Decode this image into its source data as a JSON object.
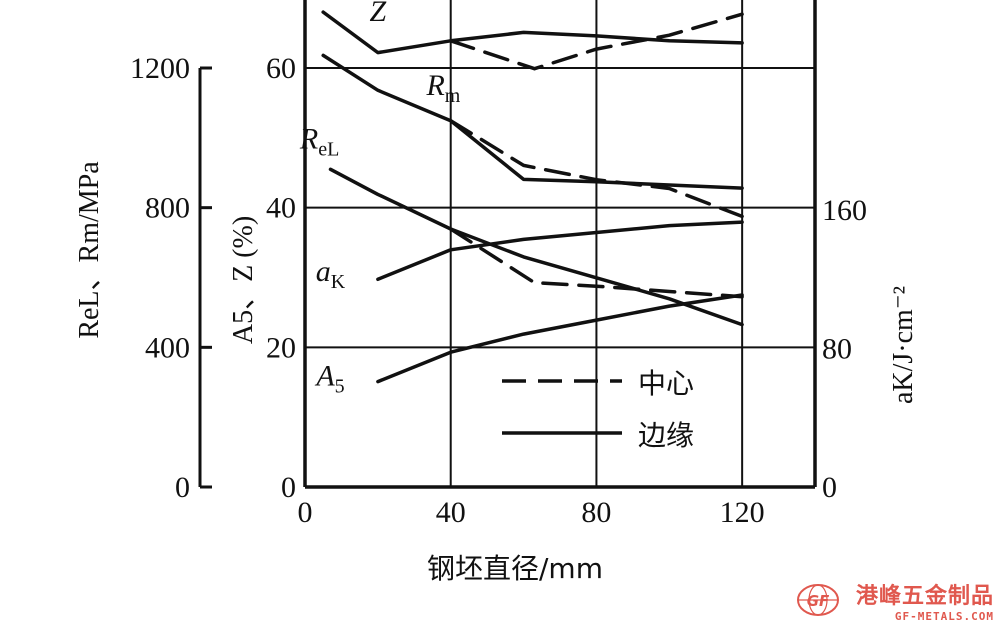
{
  "chart_data": {
    "type": "line",
    "xlabel": "钢坯直径/mm",
    "x_ticks": [
      "0",
      "40",
      "80",
      "120"
    ],
    "xlim": [
      0,
      140
    ],
    "axes": {
      "strength": {
        "label": "ReL、Rm/MPa",
        "ticks": [
          "0",
          "400",
          "800",
          "1200"
        ],
        "range": [
          0,
          1200
        ]
      },
      "percent": {
        "label": "A5、Z (%)",
        "ticks": [
          "0",
          "20",
          "40",
          "60"
        ],
        "range": [
          0,
          60
        ]
      },
      "impact": {
        "label": "aK/J·cm⁻²",
        "ticks": [
          "0",
          "80",
          "160"
        ],
        "range": [
          0,
          200
        ]
      }
    },
    "legend": {
      "placement": "bottom-right",
      "center": "中心",
      "edge": "边缘"
    },
    "series": [
      {
        "label": "Z",
        "axis": "percent",
        "style": "solid",
        "x": [
          5,
          20,
          40,
          60,
          80,
          100,
          120
        ],
        "y": [
          68,
          62.2,
          63.9,
          65.1,
          64.6,
          63.9,
          63.6
        ]
      },
      {
        "label": "Z",
        "axis": "percent",
        "style": "dashed",
        "x": [
          40,
          63,
          80,
          100,
          120
        ],
        "y": [
          63.9,
          59.9,
          62.7,
          64.7,
          67.7
        ]
      },
      {
        "label": "Rm",
        "axis": "strength",
        "style": "solid",
        "x": [
          5,
          20,
          40,
          60,
          80,
          100,
          120
        ],
        "y": [
          1236,
          1136,
          1049,
          881,
          874,
          865,
          856
        ]
      },
      {
        "label": "Rm",
        "axis": "strength",
        "style": "dashed",
        "x": [
          40,
          60,
          80,
          100,
          120
        ],
        "y": [
          1049,
          921,
          880,
          855,
          775
        ]
      },
      {
        "label": "ReL",
        "axis": "strength",
        "style": "solid",
        "x": [
          7,
          20,
          40,
          60,
          80,
          100,
          120
        ],
        "y": [
          910,
          838,
          739,
          659,
          599,
          539,
          465
        ]
      },
      {
        "label": "ReL",
        "axis": "strength",
        "style": "dashed",
        "x": [
          40,
          63,
          80,
          100,
          120
        ],
        "y": [
          739,
          585,
          575,
          560,
          545
        ]
      },
      {
        "label": "aK",
        "axis": "impact",
        "style": "solid",
        "x": [
          20,
          40,
          60,
          80,
          100,
          120
        ],
        "y": [
          120,
          137,
          143,
          147,
          151,
          153
        ]
      },
      {
        "label": "A5",
        "axis": "percent",
        "style": "solid",
        "x": [
          20,
          40,
          60,
          80,
          100,
          120
        ],
        "y": [
          15.1,
          19.3,
          21.9,
          23.9,
          25.9,
          27.5
        ]
      }
    ],
    "line_labels": [
      {
        "text": "Z",
        "sub": "",
        "x": 20,
        "y": 66.7
      },
      {
        "text": "R",
        "sub": "m",
        "x": 38,
        "y": 56.1
      },
      {
        "text": "R",
        "sub": "eL",
        "x": 4,
        "y": 48.5
      },
      {
        "text": "a",
        "sub": "K",
        "x": 7,
        "y": 29.5
      },
      {
        "text": "A",
        "sub": "5",
        "x": 7,
        "y": 14.5
      }
    ]
  },
  "watermark": {
    "name": "港峰五金制品",
    "site": "GF-METALS.COM",
    "logo_text": "GF"
  }
}
